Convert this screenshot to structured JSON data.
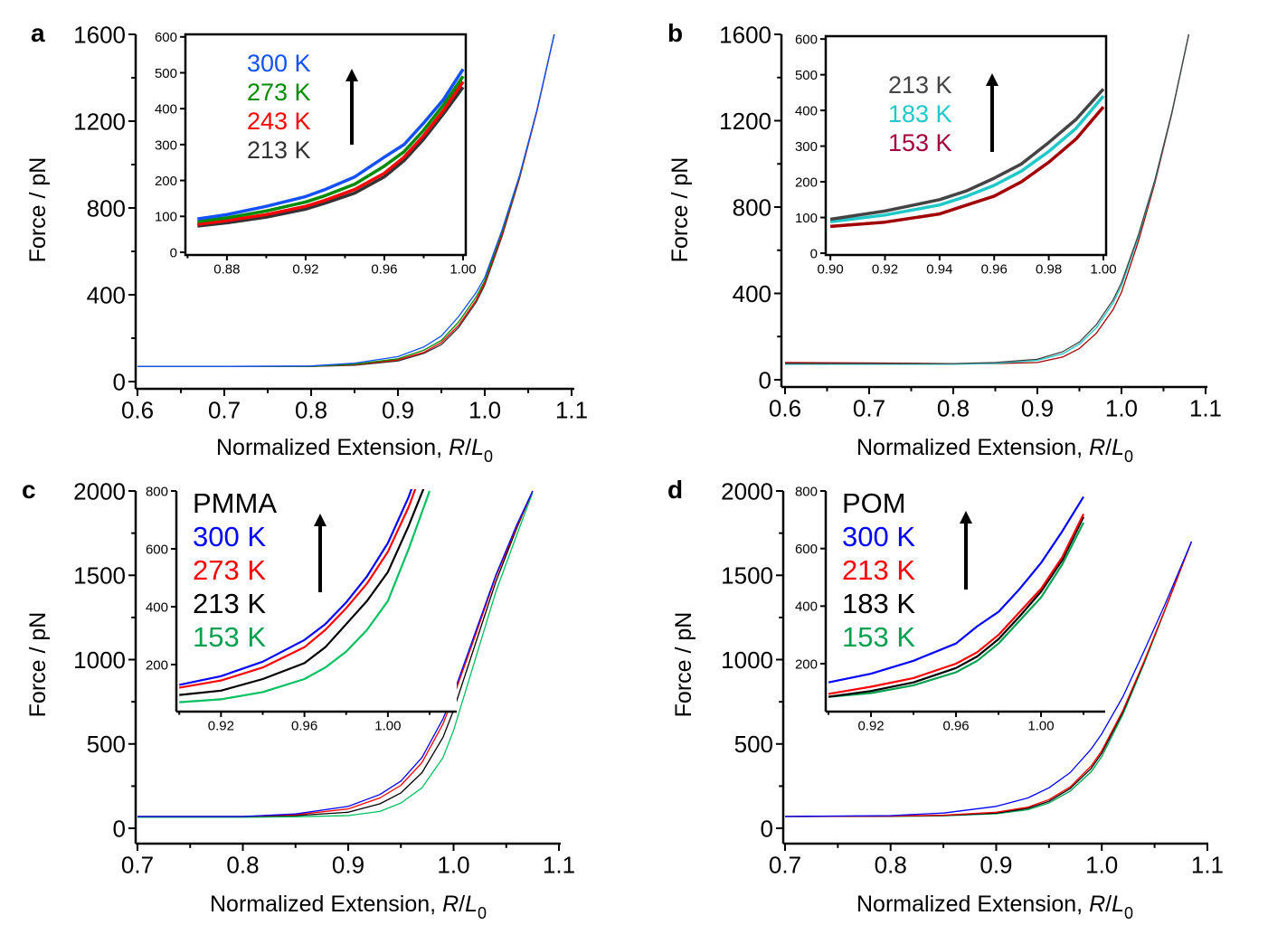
{
  "chart_data": [
    {
      "panel": "a",
      "type": "line",
      "xlabel": {
        "main": "Normalized Extension, ",
        "italic1": "R",
        "slash": "/",
        "italic2": "L",
        "sub": "0"
      },
      "ylabel": "Force / pN",
      "xlim": [
        0.5979,
        1.1031
      ],
      "ylim": [
        -33.3,
        1600
      ],
      "xticks": [
        0.6,
        0.7,
        0.8,
        0.9,
        1.0,
        1.1
      ],
      "xticklabels": [
        "0.6",
        "0.7",
        "0.8",
        "0.9",
        "1.0",
        "1.1"
      ],
      "xminor": [
        0.65,
        0.75,
        0.85,
        0.95,
        1.05
      ],
      "yticks": [
        0,
        400,
        800,
        1200,
        1600
      ],
      "yticklabels": [
        "0",
        "400",
        "800",
        "1200",
        "1600"
      ],
      "yminor": [
        200,
        600,
        1000,
        1400
      ],
      "x": [
        0.6,
        0.7,
        0.8,
        0.85,
        0.9,
        0.93,
        0.95,
        0.97,
        0.99,
        1.0,
        1.02,
        1.04,
        1.06,
        1.08
      ],
      "series": [
        {
          "name": "213 K",
          "color": "#333333",
          "values": [
            70,
            70,
            70,
            75,
            95,
            130,
            170,
            250,
            365,
            445,
            670,
            935,
            1245,
            1600
          ]
        },
        {
          "name": "243 K",
          "color": "#ff0000",
          "values": [
            70,
            70,
            70,
            78,
            100,
            135,
            180,
            260,
            375,
            455,
            680,
            940,
            1245,
            1600
          ]
        },
        {
          "name": "273 K",
          "color": "#008a00",
          "values": [
            70,
            70,
            70,
            80,
            105,
            145,
            190,
            275,
            390,
            465,
            690,
            945,
            1250,
            1600
          ]
        },
        {
          "name": "300 K",
          "color": "#1450ff",
          "values": [
            70,
            70,
            72,
            85,
            115,
            160,
            210,
            300,
            410,
            480,
            700,
            950,
            1250,
            1600
          ]
        }
      ],
      "inset": {
        "title": "",
        "xlim": [
          0.8589,
          1.0014
        ],
        "ylim": [
          -7.6,
          607
        ],
        "frame": "box",
        "xticks": [
          0.88,
          0.92,
          0.96,
          1.0
        ],
        "xticklabels": [
          "0.88",
          "0.92",
          "0.96",
          "1.00"
        ],
        "xminor": [
          0.86,
          0.9,
          0.94,
          0.98
        ],
        "yticks": [
          0,
          100,
          200,
          300,
          400,
          500,
          600
        ],
        "yticklabels": [
          "0",
          "100",
          "200",
          "300",
          "400",
          "500",
          "600"
        ],
        "x": [
          0.865,
          0.88,
          0.9,
          0.92,
          0.93,
          0.945,
          0.96,
          0.97,
          0.98,
          0.99,
          1.0
        ],
        "series": [
          {
            "name": "213 K",
            "color": "#333333",
            "values": [
              73,
              82,
              98,
              120,
              137,
              165,
              210,
              255,
              315,
              385,
              460
            ]
          },
          {
            "name": "243 K",
            "color": "#ff0000",
            "values": [
              78,
              88,
              105,
              128,
              145,
              175,
              220,
              265,
              325,
              395,
              475
            ]
          },
          {
            "name": "273 K",
            "color": "#008a00",
            "values": [
              85,
              96,
              115,
              140,
              158,
              190,
              240,
              280,
              340,
              410,
              490
            ]
          },
          {
            "name": "300 K",
            "color": "#1450ff",
            "values": [
              93,
              105,
              128,
              155,
              175,
              210,
              265,
              300,
              360,
              425,
              510
            ]
          }
        ],
        "legend": [
          {
            "label": "300 K",
            "color": "#1450ff"
          },
          {
            "label": "273 K",
            "color": "#008a00"
          },
          {
            "label": "243 K",
            "color": "#ff0000"
          },
          {
            "label": "213 K",
            "color": "#333333"
          }
        ]
      }
    },
    {
      "panel": "b",
      "type": "line",
      "xlabel": {
        "main": "Normalized Extension, ",
        "italic1": "R",
        "slash": "/",
        "italic2": "L",
        "sub": "0"
      },
      "ylabel": "Force / pN",
      "xlim": [
        0.5957,
        1.1022
      ],
      "ylim": [
        -33.5,
        1600
      ],
      "xticks": [
        0.6,
        0.7,
        0.8,
        0.9,
        1.0,
        1.1
      ],
      "xticklabels": [
        "0.6",
        "0.7",
        "0.8",
        "0.9",
        "1.0",
        "1.1"
      ],
      "xminor": [
        0.65,
        0.75,
        0.85,
        0.95,
        1.05
      ],
      "yticks": [
        0,
        400,
        800,
        1200,
        1600
      ],
      "yticklabels": [
        "0",
        "400",
        "800",
        "1200",
        "1600"
      ],
      "yminor": [
        200,
        600,
        1000,
        1400
      ],
      "x": [
        0.6,
        0.7,
        0.8,
        0.85,
        0.9,
        0.93,
        0.95,
        0.97,
        0.99,
        1.0,
        1.02,
        1.04,
        1.06,
        1.08
      ],
      "series": [
        {
          "name": "153 K",
          "color": "#a00000",
          "values": [
            80,
            78,
            75,
            75,
            80,
            105,
            145,
            215,
            325,
            405,
            640,
            915,
            1235,
            1600
          ]
        },
        {
          "name": "183 K",
          "color": "#20c8c8",
          "values": [
            72,
            72,
            72,
            76,
            90,
            120,
            165,
            240,
            355,
            435,
            660,
            925,
            1240,
            1600
          ]
        },
        {
          "name": "213 K",
          "color": "#444444",
          "values": [
            75,
            75,
            75,
            80,
            95,
            130,
            175,
            255,
            370,
            450,
            670,
            930,
            1240,
            1600
          ]
        }
      ],
      "inset": {
        "title": "",
        "xlim": [
          0.8983,
          1.001
        ],
        "ylim": [
          -5,
          608
        ],
        "frame": "box",
        "xticks": [
          0.9,
          0.92,
          0.94,
          0.96,
          0.98,
          1.0
        ],
        "xticklabels": [
          "0.90",
          "0.92",
          "0.94",
          "0.96",
          "0.98",
          "1.00"
        ],
        "xminor": [],
        "yticks": [
          0,
          100,
          200,
          300,
          400,
          500,
          600
        ],
        "yticklabels": [
          "0",
          "100",
          "200",
          "300",
          "400",
          "500",
          "600"
        ],
        "x": [
          0.9,
          0.92,
          0.94,
          0.95,
          0.96,
          0.97,
          0.98,
          0.99,
          1.0
        ],
        "series": [
          {
            "name": "153 K",
            "color": "#a00000",
            "values": [
              75,
              87,
              110,
              135,
              160,
              200,
              255,
              320,
              410
            ]
          },
          {
            "name": "183 K",
            "color": "#20c8c8",
            "values": [
              88,
              107,
              135,
              160,
              190,
              230,
              285,
              350,
              440
            ]
          },
          {
            "name": "213 K",
            "color": "#444444",
            "values": [
              95,
              118,
              150,
              175,
              210,
              250,
              310,
              375,
              460
            ]
          }
        ],
        "legend": [
          {
            "label": "213 K",
            "color": "#444444"
          },
          {
            "label": "183 K",
            "color": "#20c8c8"
          },
          {
            "label": "153 K",
            "color": "#a0003c"
          }
        ]
      }
    },
    {
      "panel": "c",
      "type": "line",
      "xlabel": {
        "main": "Normalized Extension, ",
        "italic1": "R",
        "slash": "/",
        "italic2": "L",
        "sub": "0"
      },
      "ylabel": "Force / pN",
      "xlim": [
        0.6983,
        1.1017
      ],
      "ylim": [
        -91,
        2000
      ],
      "xticks": [
        0.7,
        0.8,
        0.9,
        1.0,
        1.1
      ],
      "xticklabels": [
        "0.7",
        "0.8",
        "0.9",
        "1.0",
        "1.1"
      ],
      "xminor": [
        0.75,
        0.85,
        0.95,
        1.05
      ],
      "yticks": [
        0,
        500,
        1000,
        1500,
        2000
      ],
      "yticklabels": [
        "0",
        "500",
        "1000",
        "1500",
        "2000"
      ],
      "yminor": [
        250,
        750,
        1250,
        1750
      ],
      "x": [
        0.7,
        0.8,
        0.85,
        0.9,
        0.93,
        0.95,
        0.97,
        0.99,
        1.0,
        1.02,
        1.04,
        1.06,
        1.075
      ],
      "series": [
        {
          "name": "153 K",
          "color": "#00c060",
          "values": [
            65,
            65,
            68,
            75,
            100,
            150,
            240,
            420,
            580,
            990,
            1400,
            1740,
            1990
          ]
        },
        {
          "name": "213 K",
          "color": "#000000",
          "values": [
            70,
            70,
            75,
            95,
            145,
            210,
            330,
            540,
            700,
            1080,
            1460,
            1780,
            2000
          ]
        },
        {
          "name": "273 K",
          "color": "#ff0000",
          "values": [
            70,
            70,
            80,
            115,
            180,
            255,
            390,
            620,
            780,
            1130,
            1490,
            1790,
            2000
          ]
        },
        {
          "name": "300 K",
          "color": "#0000ff",
          "values": [
            70,
            70,
            85,
            130,
            200,
            280,
            420,
            650,
            800,
            1150,
            1500,
            1800,
            2000
          ]
        }
      ],
      "inset": {
        "title": "PMMA",
        "xlim": [
          0.8986,
          1.033
        ],
        "ylim": [
          37.5,
          800
        ],
        "frame": "axes",
        "xticks": [
          0.92,
          0.96,
          1.0
        ],
        "xticklabels": [
          "0.92",
          "0.96",
          "1.00"
        ],
        "xminor": [
          0.9,
          0.94,
          0.98,
          1.02
        ],
        "yticks": [
          200,
          400,
          600,
          800
        ],
        "yticklabels": [
          "200",
          "400",
          "600",
          "800"
        ],
        "x": [
          0.9,
          0.92,
          0.94,
          0.96,
          0.97,
          0.98,
          0.99,
          1.0,
          1.01,
          1.02
        ],
        "series": [
          {
            "name": "153 K",
            "color": "#00c060",
            "values": [
              70,
              80,
              105,
              150,
              190,
              245,
              320,
              420,
              600,
              800
            ]
          },
          {
            "name": "213 K",
            "color": "#000000",
            "values": [
              95,
              110,
              150,
              205,
              260,
              340,
              420,
              520,
              680,
              860
            ]
          },
          {
            "name": "273 K",
            "color": "#ff0000",
            "values": [
              120,
              145,
              190,
              260,
              320,
              395,
              480,
              590,
              745,
              940
            ]
          },
          {
            "name": "300 K",
            "color": "#0000ff",
            "values": [
              130,
              160,
              210,
              285,
              340,
              415,
              505,
              620,
              780,
              980
            ]
          }
        ],
        "legend": [
          {
            "label": "300 K",
            "color": "#0000ff"
          },
          {
            "label": "273 K",
            "color": "#ff0000"
          },
          {
            "label": "213 K",
            "color": "#000000"
          },
          {
            "label": "153 K",
            "color": "#00a050"
          }
        ]
      }
    },
    {
      "panel": "d",
      "type": "line",
      "xlabel": {
        "main": "Normalized Extension, ",
        "italic1": "R",
        "slash": "/",
        "italic2": "L",
        "sub": "0"
      },
      "ylabel": "Force / pN",
      "xlim": [
        0.6983,
        1.1009
      ],
      "ylim": [
        -91,
        2000
      ],
      "xticks": [
        0.7,
        0.8,
        0.9,
        1.0,
        1.1
      ],
      "xticklabels": [
        "0.7",
        "0.8",
        "0.9",
        "1.0",
        "1.1"
      ],
      "xminor": [
        0.75,
        0.85,
        0.95,
        1.05
      ],
      "yticks": [
        0,
        500,
        1000,
        1500,
        2000
      ],
      "yticklabels": [
        "0",
        "500",
        "1000",
        "1500",
        "2000"
      ],
      "yminor": [
        250,
        750,
        1250,
        1750
      ],
      "x": [
        0.7,
        0.8,
        0.85,
        0.9,
        0.93,
        0.95,
        0.97,
        0.99,
        1.0,
        1.02,
        1.04,
        1.06,
        1.085
      ],
      "series": [
        {
          "name": "153 K",
          "color": "#00a050",
          "values": [
            70,
            70,
            74,
            86,
            110,
            150,
            220,
            335,
            425,
            675,
            975,
            1295,
            1700
          ]
        },
        {
          "name": "183 K",
          "color": "#000000",
          "values": [
            70,
            72,
            76,
            90,
            118,
            160,
            235,
            355,
            445,
            690,
            985,
            1300,
            1700
          ]
        },
        {
          "name": "213 K",
          "color": "#ff0000",
          "values": [
            70,
            72,
            78,
            95,
            125,
            170,
            245,
            370,
            460,
            700,
            990,
            1300,
            1700
          ]
        },
        {
          "name": "300 K",
          "color": "#0000ff",
          "values": [
            70,
            75,
            90,
            130,
            180,
            240,
            330,
            470,
            560,
            780,
            1050,
            1330,
            1700
          ]
        }
      ],
      "inset": {
        "title": "POM",
        "xlim": [
          0.8987,
          1.0302
        ],
        "ylim": [
          33.5,
          800
        ],
        "frame": "axes",
        "xticks": [
          0.92,
          0.96,
          1.0
        ],
        "xticklabels": [
          "0.92",
          "0.96",
          "1.00"
        ],
        "xminor": [
          0.9,
          0.94,
          0.98,
          1.02
        ],
        "yticks": [
          200,
          400,
          600,
          800
        ],
        "yticklabels": [
          "200",
          "400",
          "600",
          "800"
        ],
        "x": [
          0.9,
          0.92,
          0.94,
          0.96,
          0.97,
          0.98,
          0.99,
          1.0,
          1.01,
          1.02
        ],
        "series": [
          {
            "name": "153 K",
            "color": "#00a050",
            "values": [
              85,
              98,
              125,
              170,
              210,
              270,
              350,
              430,
              545,
              690
            ]
          },
          {
            "name": "183 K",
            "color": "#000000",
            "values": [
              85,
              105,
              135,
              185,
              225,
              285,
              365,
              450,
              560,
              710
            ]
          },
          {
            "name": "213 K",
            "color": "#ff0000",
            "values": [
              95,
              120,
              150,
              200,
              240,
              300,
              380,
              460,
              570,
              720
            ]
          },
          {
            "name": "300 K",
            "color": "#0000ff",
            "values": [
              135,
              165,
              210,
              270,
              330,
              380,
              460,
              550,
              660,
              780
            ]
          }
        ],
        "legend": [
          {
            "label": "300 K",
            "color": "#0000ff"
          },
          {
            "label": "213 K",
            "color": "#ff0000"
          },
          {
            "label": "183 K",
            "color": "#000000"
          },
          {
            "label": "153 K",
            "color": "#00a050"
          }
        ]
      }
    }
  ]
}
